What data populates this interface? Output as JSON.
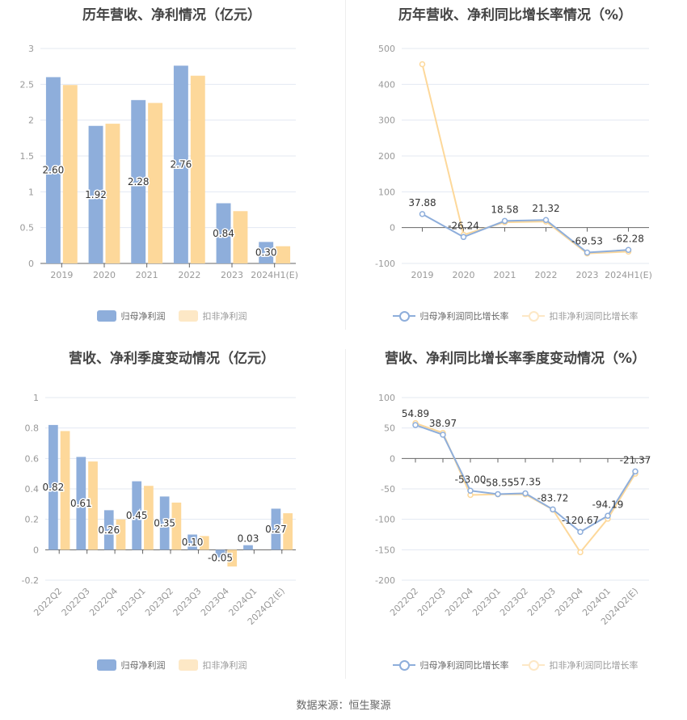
{
  "colors": {
    "blue": "#8eaedb",
    "yellow": "#fdd89a",
    "yellow_light": "#fde8c6",
    "grid": "#e3e8f2",
    "axis": "#666666",
    "tick_text": "#999999",
    "label_text": "#333333"
  },
  "source": "数据来源：恒生聚源",
  "chart_data": [
    {
      "type": "bar",
      "title": "历年营收、净利情况（亿元）",
      "categories": [
        "2019",
        "2020",
        "2021",
        "2022",
        "2023",
        "2024H1(E)"
      ],
      "series": [
        {
          "name": "归母净利润",
          "values": [
            2.6,
            1.92,
            2.28,
            2.76,
            0.84,
            0.3
          ],
          "labels": [
            "2.60",
            "1.92",
            "2.28",
            "2.76",
            "0.84",
            "0.30"
          ]
        },
        {
          "name": "扣非净利润",
          "values": [
            2.49,
            1.95,
            2.24,
            2.62,
            0.73,
            0.24
          ]
        }
      ],
      "yticks": [
        "0",
        "0.5",
        "1",
        "1.5",
        "2",
        "2.5",
        "3"
      ],
      "ylim": [
        0,
        3
      ],
      "grid": true,
      "legend_position": "bottom"
    },
    {
      "type": "line",
      "title": "历年营收、净利同比增长率情况（%）",
      "categories": [
        "2019",
        "2020",
        "2021",
        "2022",
        "2023",
        "2024H1(E)"
      ],
      "series": [
        {
          "name": "归母净利润同比增长率",
          "values": [
            37.88,
            -26.24,
            18.58,
            21.32,
            -69.53,
            -62.28
          ],
          "labels": [
            "37.88",
            "-26.24",
            "18.58",
            "21.32",
            "-69.53",
            "-62.28"
          ]
        },
        {
          "name": "扣非净利润同比增长率",
          "values": [
            456,
            -20,
            15,
            17,
            -72,
            -67
          ]
        }
      ],
      "yticks": [
        "-100",
        "0",
        "100",
        "200",
        "300",
        "400",
        "500"
      ],
      "ylim": [
        -100,
        500
      ],
      "grid": true,
      "legend_position": "bottom"
    },
    {
      "type": "bar",
      "title": "营收、净利季度变动情况（亿元）",
      "categories": [
        "2022Q2",
        "2022Q3",
        "2022Q4",
        "2023Q1",
        "2023Q2",
        "2023Q3",
        "2023Q4",
        "2024Q1",
        "2024Q2(E)"
      ],
      "series": [
        {
          "name": "归母净利润",
          "values": [
            0.82,
            0.61,
            0.26,
            0.45,
            0.35,
            0.1,
            -0.05,
            0.03,
            0.27
          ],
          "labels": [
            "0.82",
            "0.61",
            "0.26",
            "0.45",
            "0.35",
            "0.10",
            "-0.05",
            "0.03",
            "0.27"
          ]
        },
        {
          "name": "扣非净利润",
          "values": [
            0.78,
            0.58,
            0.2,
            0.42,
            0.31,
            0.09,
            -0.11,
            0.0,
            0.24
          ]
        }
      ],
      "yticks": [
        "-0.2",
        "0",
        "0.2",
        "0.4",
        "0.6",
        "0.8",
        "1"
      ],
      "ylim": [
        -0.2,
        1
      ],
      "grid": true,
      "legend_position": "bottom"
    },
    {
      "type": "line",
      "title": "营收、净利同比增长率季度变动情况（%）",
      "categories": [
        "2022Q2",
        "2022Q3",
        "2022Q4",
        "2023Q1",
        "2023Q2",
        "2023Q3",
        "2023Q4",
        "2024Q1",
        "2024Q2(E)"
      ],
      "series": [
        {
          "name": "归母净利润同比增长率",
          "values": [
            54.89,
            38.97,
            -53.0,
            -58.55,
            -57.35,
            -83.72,
            -120.67,
            -94.19,
            -21.37
          ],
          "labels": [
            "54.89",
            "38.97",
            "-53.00",
            "-58.55",
            "-57.35",
            "-83.72",
            "-120.67",
            "-94.19",
            "-21.37"
          ]
        },
        {
          "name": "扣非净利润同比增长率",
          "values": [
            58,
            42,
            -60,
            -59,
            -59,
            -84,
            -154,
            -99,
            -25
          ]
        }
      ],
      "yticks": [
        "-200",
        "-150",
        "-100",
        "-50",
        "0",
        "50",
        "100"
      ],
      "ylim": [
        -200,
        100
      ],
      "grid": true,
      "legend_position": "bottom"
    }
  ]
}
